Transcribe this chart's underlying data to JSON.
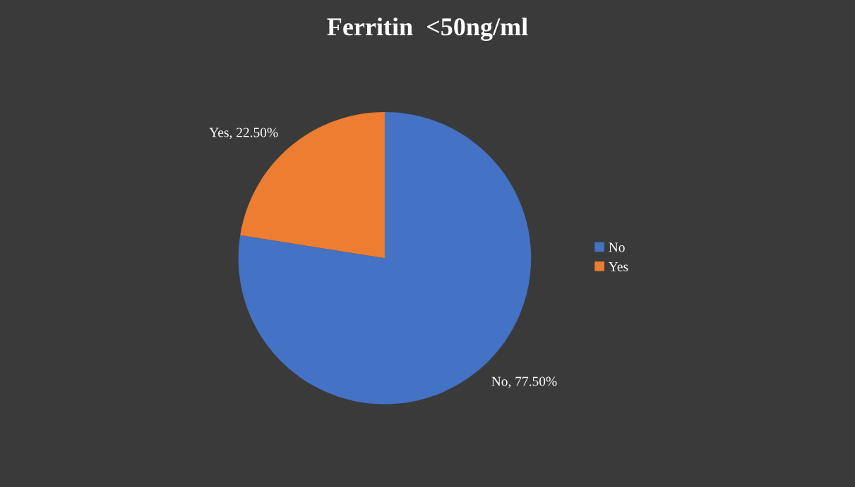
{
  "chart_data": {
    "type": "pie",
    "title": "Ferritin  <50ng/ml",
    "categories": [
      "No",
      "Yes"
    ],
    "values": [
      77.5,
      22.5
    ],
    "colors": [
      "#4472c4",
      "#ed7d31"
    ],
    "value_labels": [
      "No, 77.50%",
      "Yes, 22.50%"
    ],
    "legend": "right"
  }
}
